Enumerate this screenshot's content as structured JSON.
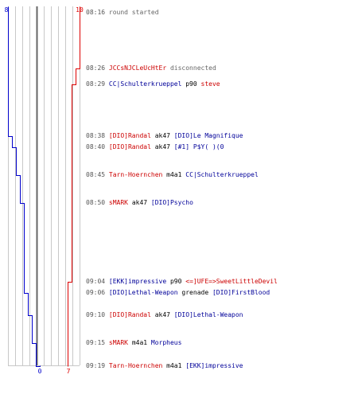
{
  "colors": {
    "red_team": "#dd0000",
    "blue_team": "#0000cc",
    "grid": "#c8c8c8",
    "center_line": "#666666"
  },
  "scores": {
    "blue_start": "8",
    "red_start": "10",
    "blue_end": "0",
    "red_end": "7"
  },
  "events": [
    {
      "time": "08:16",
      "parts": [
        {
          "text": "round started",
          "color": "gray"
        }
      ]
    },
    {
      "time": "08:26",
      "parts": [
        {
          "text": "JCCsNJCLeUcHtEr",
          "color": "red"
        },
        {
          "text": " disconnected",
          "color": "gray"
        }
      ]
    },
    {
      "time": "08:29",
      "parts": [
        {
          "text": "CC|Schulterkrueppel",
          "color": "blue"
        },
        {
          "text": " p90 ",
          "color": "plain"
        },
        {
          "text": "steve",
          "color": "red"
        }
      ]
    },
    {
      "time": "08:38",
      "parts": [
        {
          "text": "[DIO]Randal",
          "color": "red"
        },
        {
          "text": " ak47 ",
          "color": "plain"
        },
        {
          "text": "[DIO]Le Magnifique",
          "color": "blue"
        }
      ]
    },
    {
      "time": "08:40",
      "parts": [
        {
          "text": "[DIO]Randal",
          "color": "red"
        },
        {
          "text": " ak47 ",
          "color": "plain"
        },
        {
          "text": "[#1] P$Y( )(0",
          "color": "blue"
        }
      ]
    },
    {
      "time": "08:45",
      "parts": [
        {
          "text": "Tarn-Hoernchen",
          "color": "red"
        },
        {
          "text": " m4a1 ",
          "color": "plain"
        },
        {
          "text": "CC|Schulterkrueppel",
          "color": "blue"
        }
      ]
    },
    {
      "time": "08:50",
      "parts": [
        {
          "text": "sMARK",
          "color": "red"
        },
        {
          "text": " ak47 ",
          "color": "plain"
        },
        {
          "text": "[DIO]Psycho",
          "color": "blue"
        }
      ]
    },
    {
      "time": "09:04",
      "parts": [
        {
          "text": "[EKK]impressive",
          "color": "blue"
        },
        {
          "text": " p90 ",
          "color": "plain"
        },
        {
          "text": "<=]UFE=>SweetLittleDevil",
          "color": "red"
        }
      ]
    },
    {
      "time": "09:06",
      "parts": [
        {
          "text": "[DIO]Lethal-Weapon",
          "color": "blue"
        },
        {
          "text": " grenade ",
          "color": "plain"
        },
        {
          "text": "[DIO]FirstBlood",
          "color": "blue"
        }
      ]
    },
    {
      "time": "09:10",
      "parts": [
        {
          "text": "[DIO]Randal",
          "color": "red"
        },
        {
          "text": " ak47 ",
          "color": "plain"
        },
        {
          "text": "[DIO]Lethal-Weapon",
          "color": "blue"
        }
      ]
    },
    {
      "time": "09:15",
      "parts": [
        {
          "text": "sMARK",
          "color": "red"
        },
        {
          "text": " m4a1 ",
          "color": "plain"
        },
        {
          "text": "Morpheus",
          "color": "blue"
        }
      ]
    },
    {
      "time": "09:19",
      "parts": [
        {
          "text": "Tarn-Hoernchen",
          "color": "red"
        },
        {
          "text": " m4a1 ",
          "color": "plain"
        },
        {
          "text": "[EKK]impressive",
          "color": "blue"
        }
      ]
    }
  ],
  "chart_data": {
    "type": "line",
    "x_label": "",
    "y_label": "",
    "xlim": [
      0,
      10
    ],
    "series": [
      {
        "color": "#0000cc",
        "alive": [
          8,
          8,
          8,
          7,
          6,
          5,
          4,
          4,
          3,
          2,
          1,
          0
        ]
      },
      {
        "color": "#dd0000",
        "alive": [
          10,
          9,
          8,
          8,
          8,
          8,
          8,
          7,
          7,
          7,
          7,
          7
        ]
      }
    ]
  }
}
